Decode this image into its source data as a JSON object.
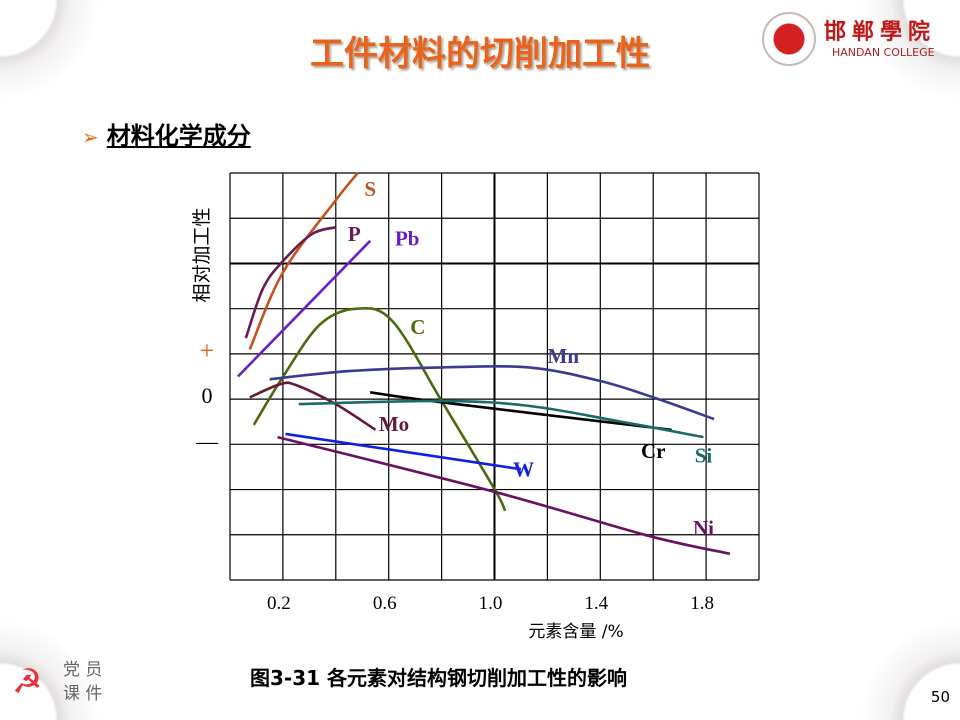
{
  "slide": {
    "title": "工件材料的切削加工性",
    "logo": {
      "cn": "邯郸學院",
      "en": "HANDAN COLLEGE"
    },
    "bullet": "材料化学成分",
    "caption": "图3-31   各元素对结构钢切削加工性的影响",
    "badge": {
      "l1": "党 员",
      "l2": "课 件"
    },
    "page_number": "50"
  },
  "chart_data": {
    "type": "line",
    "title": "",
    "xlabel": "元素含量 /%",
    "ylabel": "相对加工性",
    "xlim": [
      0,
      2.0
    ],
    "ylim": [
      -4,
      5
    ],
    "x_ticks": [
      {
        "v": 0.2,
        "label": "0.2"
      },
      {
        "v": 0.6,
        "label": "0.6"
      },
      {
        "v": 1.0,
        "label": "1.0"
      },
      {
        "v": 1.4,
        "label": "1.4"
      },
      {
        "v": 1.8,
        "label": "1.8"
      }
    ],
    "y_ticks": [
      {
        "v": 1,
        "label": "+"
      },
      {
        "v": 0,
        "label": "0"
      },
      {
        "v": -1,
        "label": "—"
      }
    ],
    "grid": true,
    "series": [
      {
        "name": "S",
        "color": "#c8501a",
        "label_at": [
          0.53,
          4.6
        ],
        "x": [
          0.075,
          0.2,
          0.4,
          0.483
        ],
        "y": [
          1.1,
          2.8,
          4.4,
          5.0
        ]
      },
      {
        "name": "P",
        "color": "#6a1a55",
        "label_at": [
          0.47,
          3.6
        ],
        "x": [
          0.06,
          0.125,
          0.2,
          0.31,
          0.4
        ],
        "y": [
          1.35,
          2.45,
          3.05,
          3.65,
          3.8
        ]
      },
      {
        "name": "Pb",
        "color": "#6a1ec8",
        "label_at": [
          0.67,
          3.5
        ],
        "x": [
          0.03,
          0.53
        ],
        "y": [
          0.5,
          3.5
        ]
      },
      {
        "name": "C",
        "color": "#4a6a10",
        "label_at": [
          0.71,
          1.55
        ],
        "x": [
          0.09,
          0.2,
          0.34,
          0.48,
          0.615,
          0.8,
          1.0,
          1.04
        ],
        "y": [
          -0.57,
          0.49,
          1.65,
          2.0,
          1.72,
          -0.04,
          -1.99,
          -2.47
        ]
      },
      {
        "name": "Mn",
        "color": "#3a3a90",
        "label_at": [
          1.26,
          0.9
        ],
        "x": [
          0.15,
          0.45,
          0.8,
          1.13,
          1.4,
          1.61,
          1.83
        ],
        "y": [
          0.44,
          0.62,
          0.7,
          0.7,
          0.4,
          0.02,
          -0.44
        ]
      },
      {
        "name": "Mo",
        "color": "#6a1a30",
        "label_at": [
          0.62,
          -0.6
        ],
        "x": [
          0.075,
          0.19,
          0.25,
          0.4,
          0.55
        ],
        "y": [
          0.04,
          0.33,
          0.31,
          -0.11,
          -0.68
        ]
      },
      {
        "name": "Cr",
        "color": "#000000",
        "label_at": [
          1.6,
          -1.2
        ],
        "x": [
          0.53,
          0.8,
          1.67
        ],
        "y": [
          0.15,
          -0.07,
          -0.68
        ]
      },
      {
        "name": "Si",
        "color": "#1a6a6a",
        "label_at": [
          1.79,
          -1.3
        ],
        "x": [
          0.26,
          0.8,
          1.13,
          1.47,
          1.79
        ],
        "y": [
          -0.11,
          -0.04,
          -0.15,
          -0.49,
          -0.84
        ]
      },
      {
        "name": "W",
        "color": "#1020e0",
        "label_at": [
          1.11,
          -1.6
        ],
        "x": [
          0.21,
          1.1
        ],
        "y": [
          -0.77,
          -1.55
        ]
      },
      {
        "name": "Ni",
        "color": "#6a1060",
        "label_at": [
          1.79,
          -2.9
        ],
        "x": [
          0.18,
          1.0,
          1.58,
          1.89
        ],
        "y": [
          -0.84,
          -2.05,
          -3.02,
          -3.42
        ]
      }
    ]
  }
}
